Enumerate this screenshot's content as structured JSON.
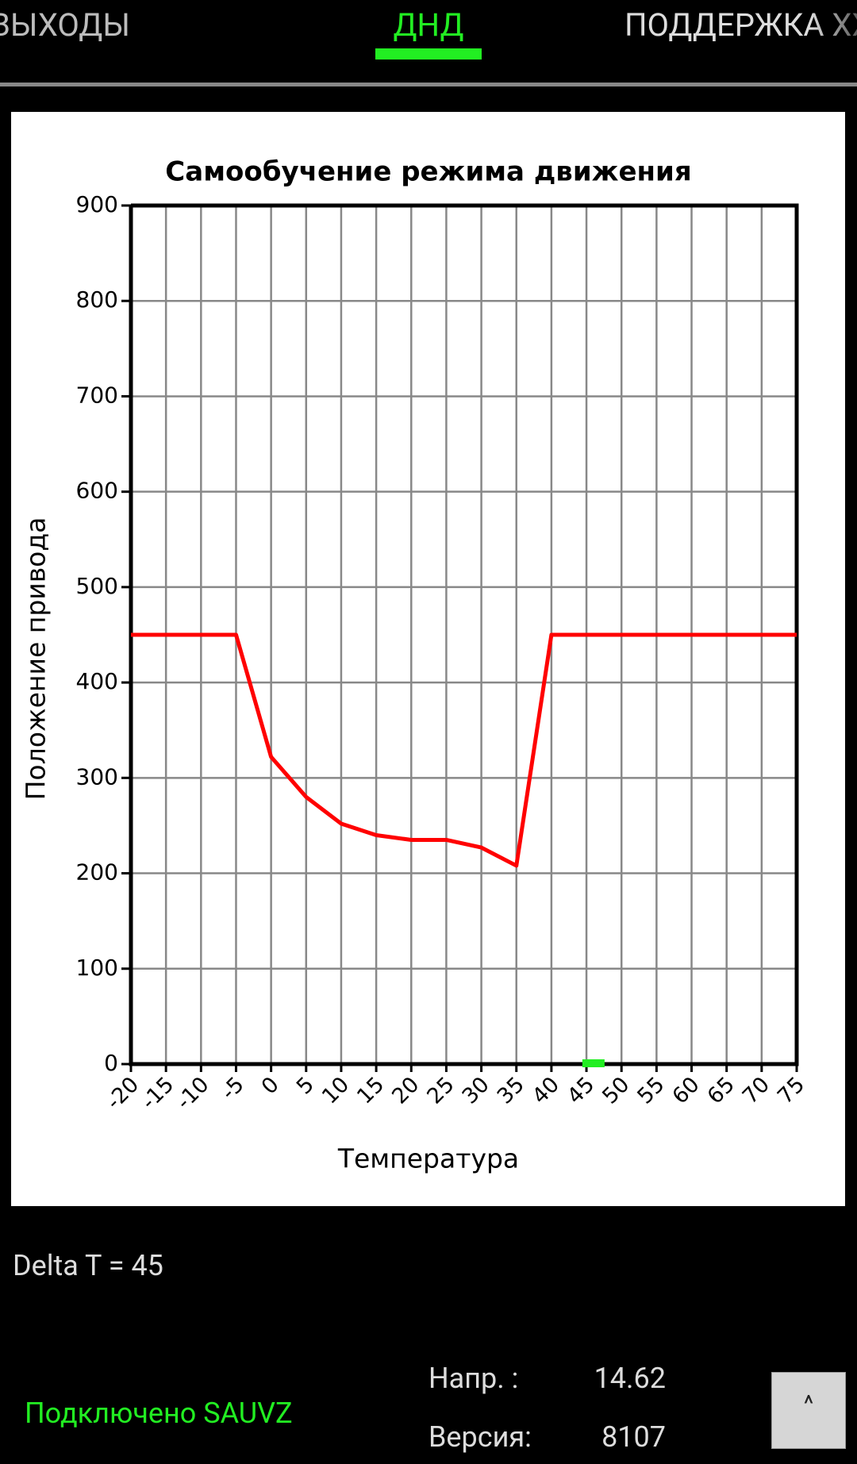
{
  "tabs": [
    "ВЫХОДЫ",
    "ДНД",
    "ПОДДЕРЖКА ХХ"
  ],
  "chart_data": {
    "type": "line",
    "title": "Самообучение режима движения",
    "x_label": "Температура",
    "y_label": "Положение привода",
    "x": [
      -20,
      -15,
      -10,
      -5,
      0,
      5,
      10,
      15,
      20,
      25,
      30,
      35,
      40,
      45,
      50,
      55,
      60,
      65,
      70,
      75
    ],
    "series": [
      {
        "color": "#ff0000",
        "values": [
          450,
          450,
          450,
          450,
          322,
          280,
          252,
          240,
          235,
          235,
          227,
          208,
          450,
          450,
          450,
          450,
          450,
          450,
          450,
          450
        ]
      }
    ],
    "marker": {
      "x": 46,
      "y": 0,
      "color": "#22ee22"
    },
    "xlim": [
      -20,
      75
    ],
    "ylim": [
      0,
      900
    ],
    "xticks": [
      -20,
      -15,
      -10,
      -5,
      0,
      5,
      10,
      15,
      20,
      25,
      30,
      35,
      40,
      45,
      50,
      55,
      60,
      65,
      70,
      75
    ],
    "yticks": [
      0,
      100,
      200,
      300,
      400,
      500,
      600,
      700,
      800,
      900
    ],
    "grid": true
  },
  "status": {
    "delta_t": "Delta T = 45",
    "connection": "Подключено SAUVZ",
    "voltage_label": "Напр. :",
    "voltage": "14.62",
    "version_label": "Версия:",
    "version": "8107"
  },
  "button": "^"
}
